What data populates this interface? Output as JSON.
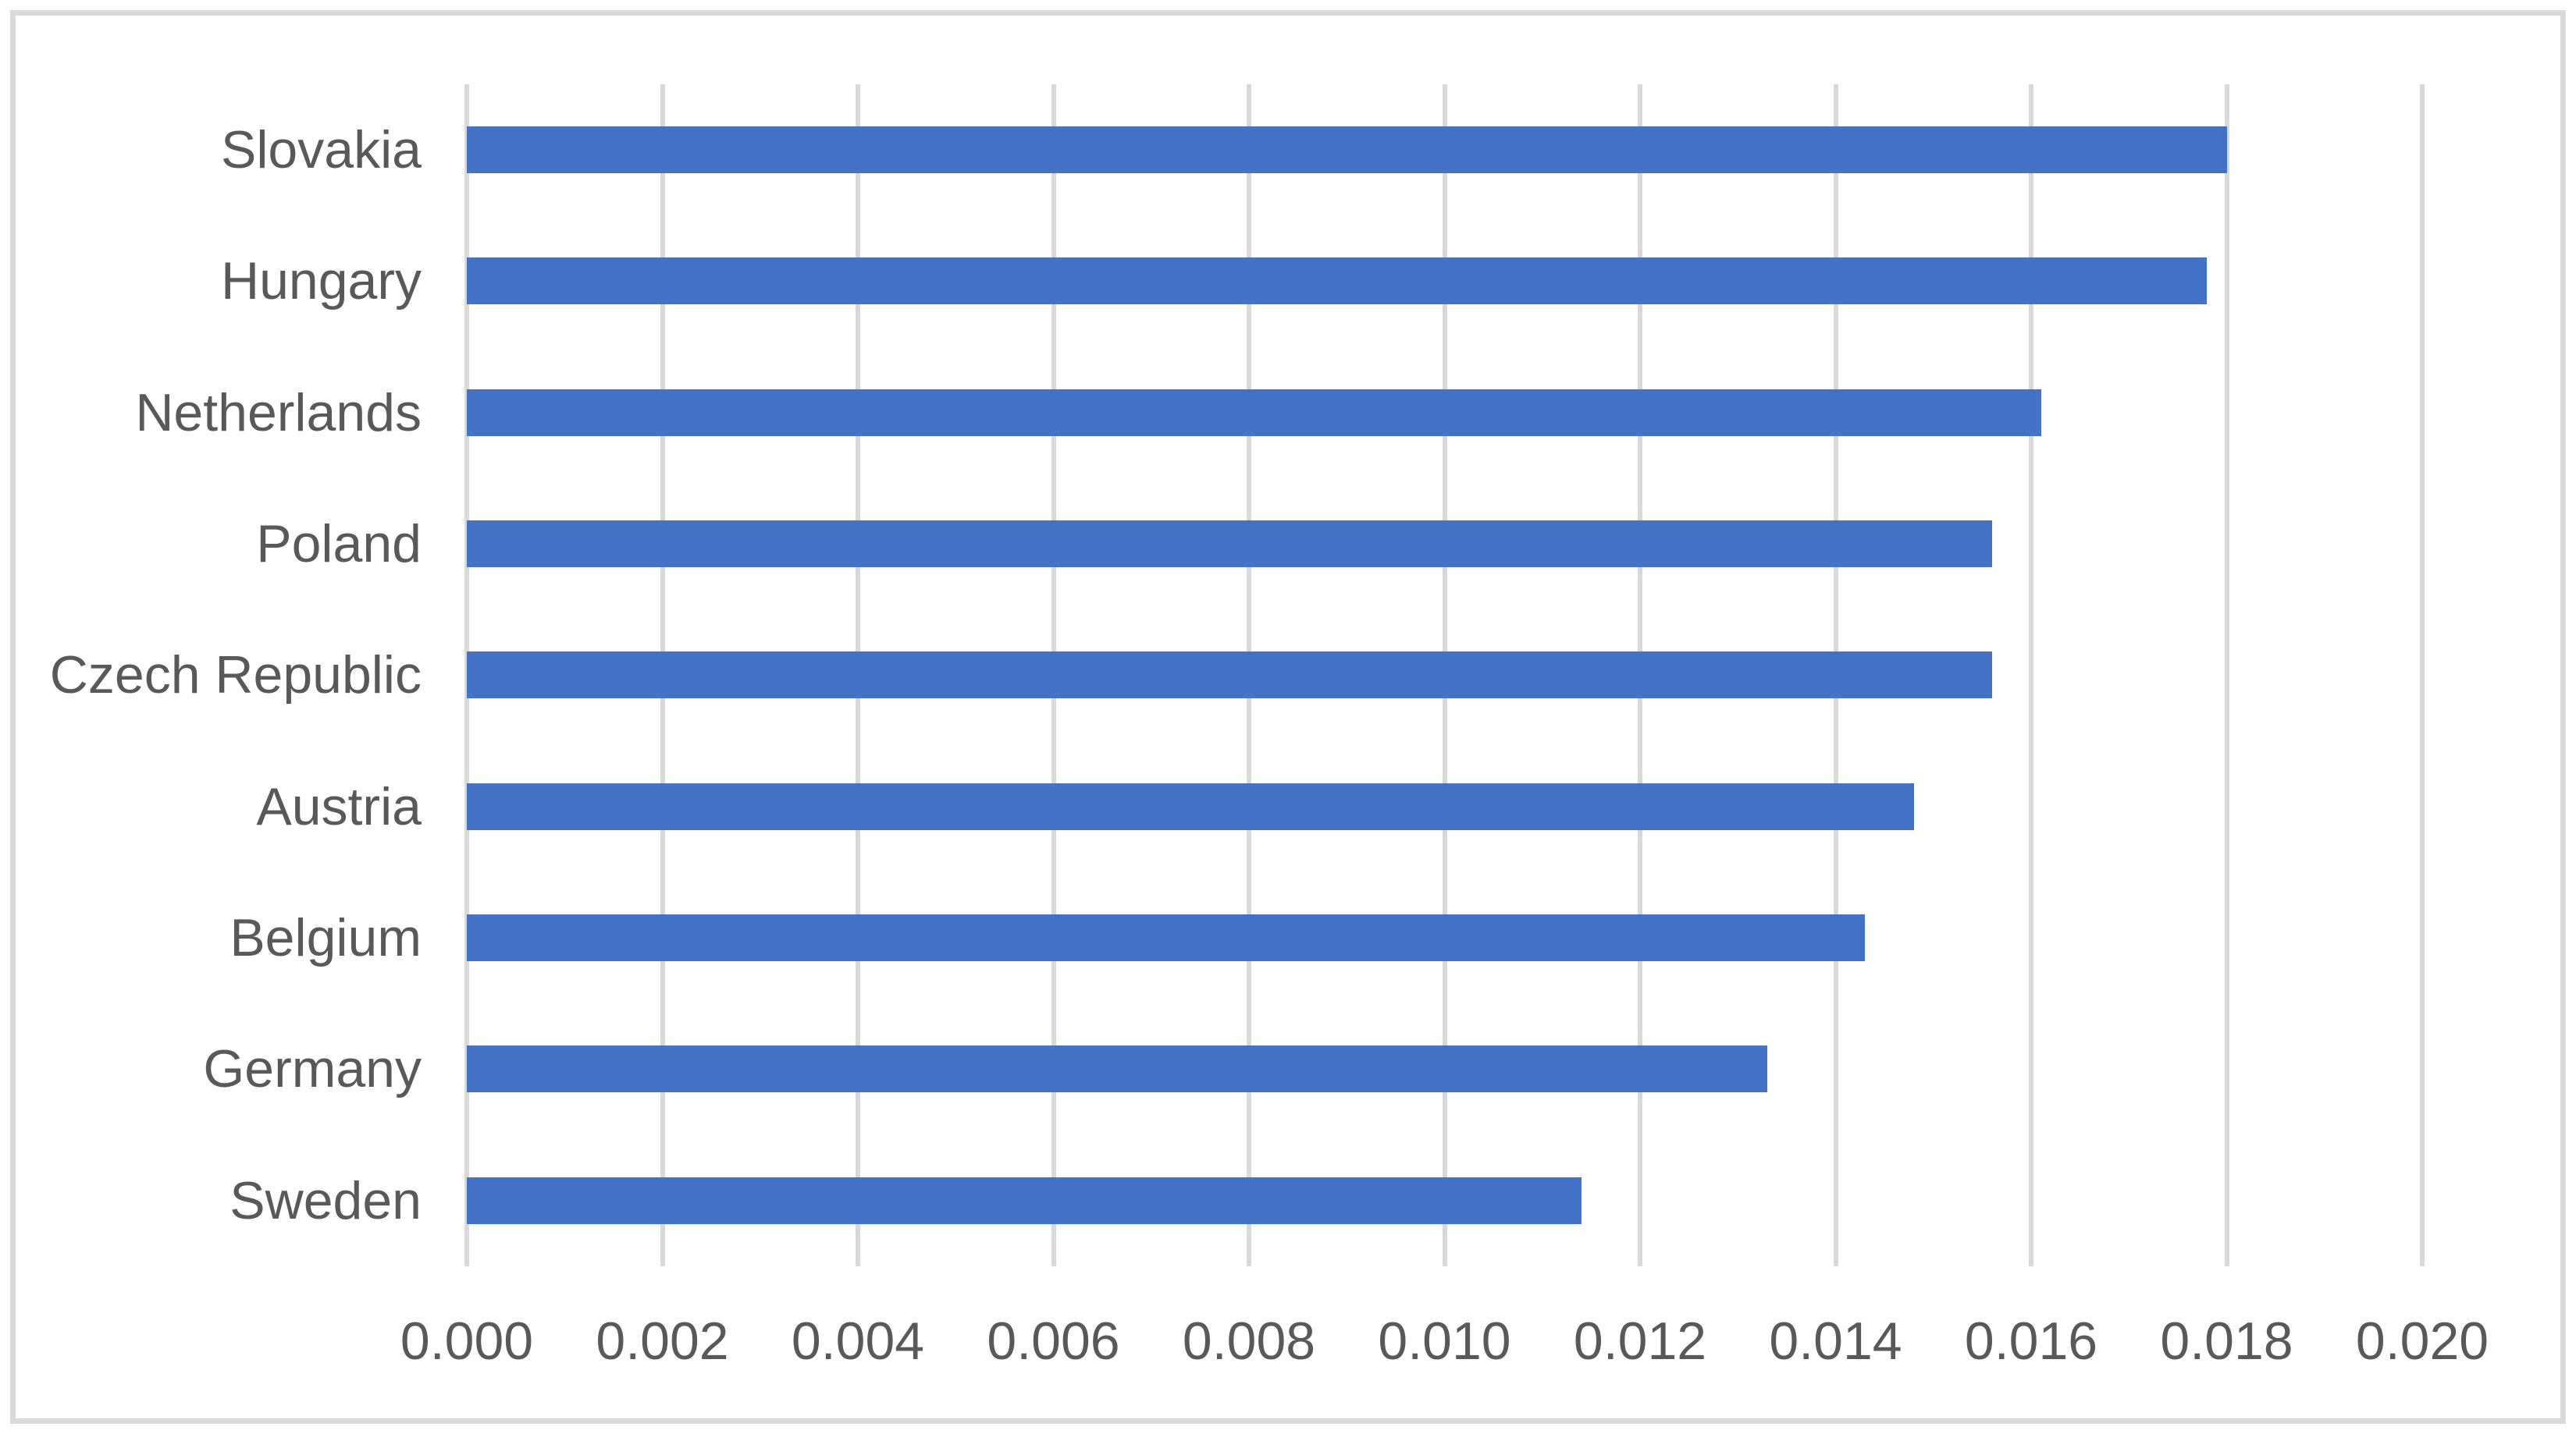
{
  "chart_data": {
    "type": "bar",
    "orientation": "horizontal",
    "title": "",
    "xlabel": "",
    "ylabel": "",
    "categories": [
      "Slovakia",
      "Hungary",
      "Netherlands",
      "Poland",
      "Czech Republic",
      "Austria",
      "Belgium",
      "Germany",
      "Sweden"
    ],
    "values": [
      0.018,
      0.0178,
      0.0161,
      0.0156,
      0.0156,
      0.0148,
      0.0143,
      0.0133,
      0.0114
    ],
    "xlim": [
      0.0,
      0.02
    ],
    "x_ticks": [
      "0.000",
      "0.002",
      "0.004",
      "0.006",
      "0.008",
      "0.010",
      "0.012",
      "0.014",
      "0.016",
      "0.018",
      "0.020"
    ],
    "grid": true,
    "legend": false,
    "colors": {
      "bar": "#4472C4",
      "gridline": "#D9D9D9",
      "axis_text": "#595959",
      "chart_border": "#D9D9D9",
      "background": "#FFFFFF"
    }
  }
}
